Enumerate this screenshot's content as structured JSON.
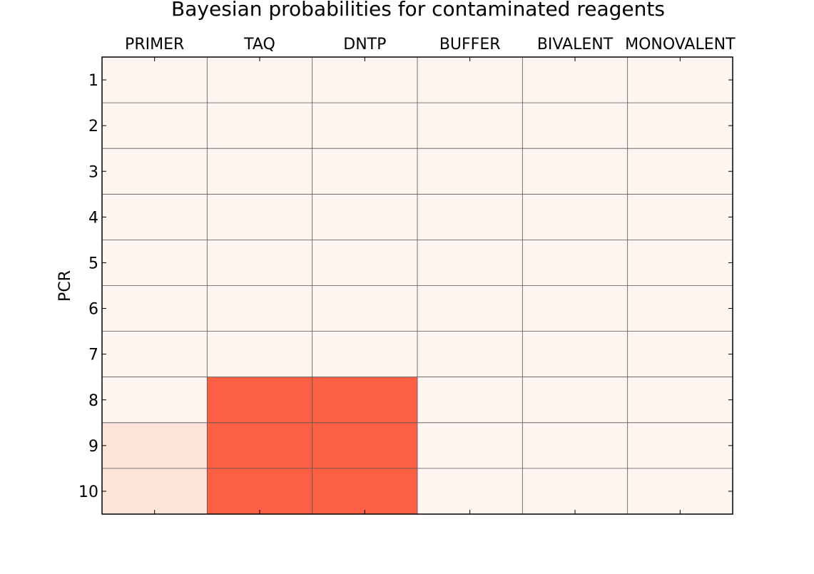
{
  "chart_data": {
    "type": "heatmap",
    "title": "Bayesian probabilities for contaminated reagents",
    "ylabel": "PCR",
    "xlabel": "",
    "columns": [
      "PRIMER",
      "TAQ",
      "DNTP",
      "BUFFER",
      "BIVALENT",
      "MONOVALENT"
    ],
    "rows": [
      "1",
      "2",
      "3",
      "4",
      "5",
      "6",
      "7",
      "8",
      "9",
      "10"
    ],
    "values": [
      [
        0.0,
        0.0,
        0.0,
        0.0,
        0.0,
        0.0
      ],
      [
        0.0,
        0.0,
        0.0,
        0.0,
        0.0,
        0.0
      ],
      [
        0.0,
        0.0,
        0.0,
        0.0,
        0.0,
        0.0
      ],
      [
        0.0,
        0.0,
        0.0,
        0.0,
        0.0,
        0.0
      ],
      [
        0.0,
        0.0,
        0.0,
        0.0,
        0.0,
        0.0
      ],
      [
        0.0,
        0.0,
        0.0,
        0.0,
        0.0,
        0.0
      ],
      [
        0.0,
        0.0,
        0.0,
        0.0,
        0.0,
        0.0
      ],
      [
        0.0,
        0.5,
        0.5,
        0.0,
        0.0,
        0.0
      ],
      [
        0.05,
        0.5,
        0.5,
        0.0,
        0.0,
        0.0
      ],
      [
        0.05,
        0.5,
        0.5,
        0.0,
        0.0,
        0.0
      ]
    ],
    "colormap": "Reds",
    "color_low": "#fff5f0",
    "color_mid": "#fee5d9",
    "color_high": "#fb6045",
    "grid": true,
    "x_tick_position": "top"
  }
}
